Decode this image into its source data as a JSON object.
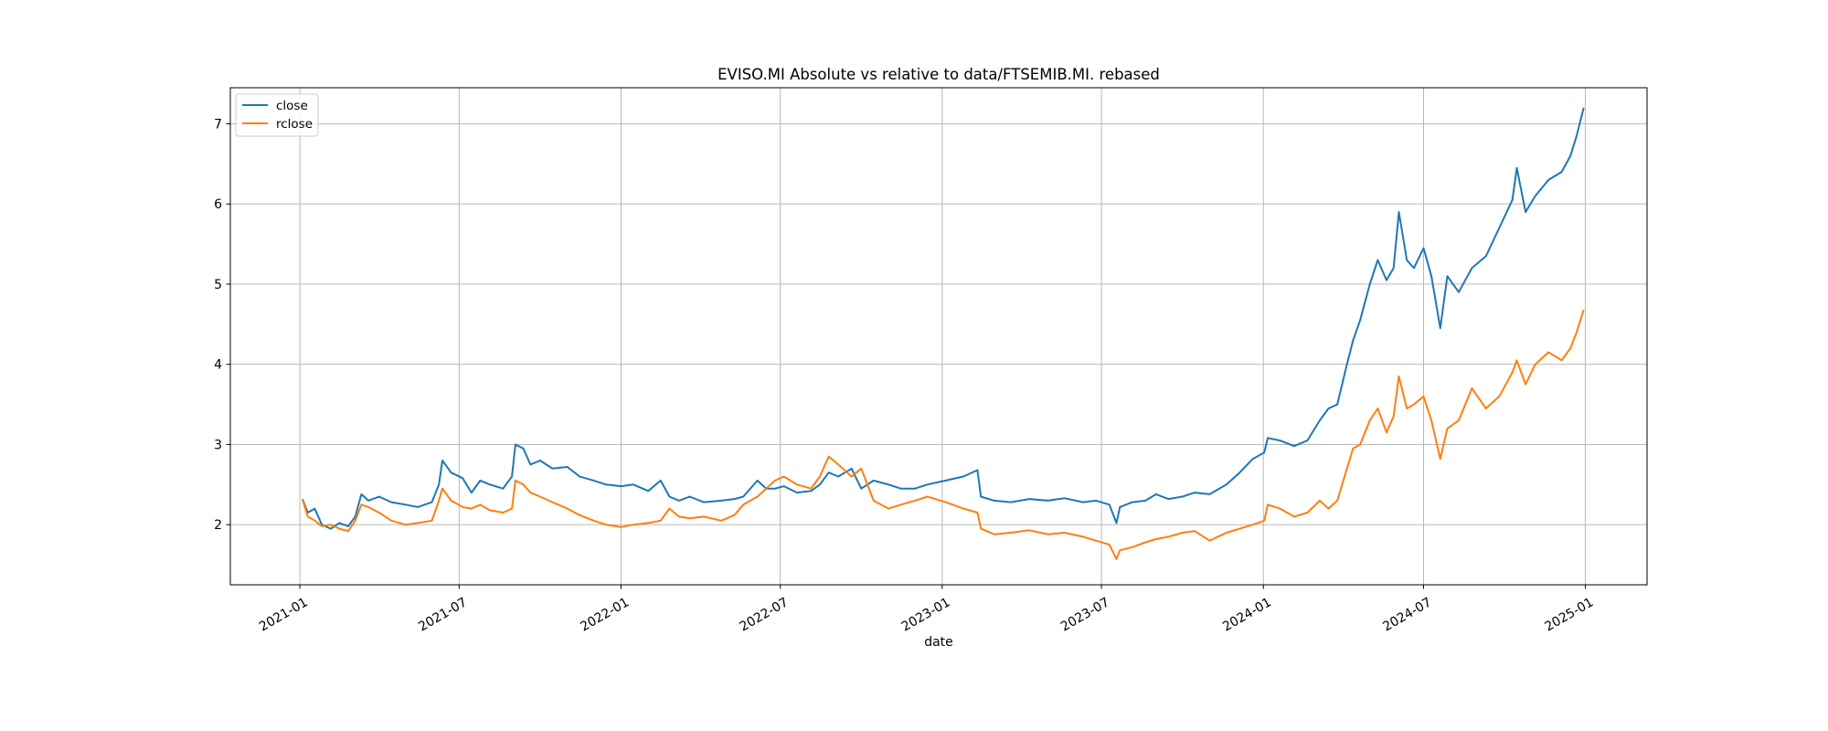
{
  "chart_data": {
    "type": "line",
    "title": "EVISO.MI Absolute vs relative to data/FTSEMIB.MI. rebased",
    "xlabel": "date",
    "ylabel": "",
    "grid": true,
    "legend_position": "upper-left",
    "xlim": [
      "2020-10-14",
      "2025-03-12"
    ],
    "ylim": [
      1.25,
      7.45
    ],
    "x_ticks": [
      "2021-01",
      "2021-07",
      "2022-01",
      "2022-07",
      "2023-01",
      "2023-07",
      "2024-01",
      "2024-07",
      "2025-01"
    ],
    "y_ticks": [
      2,
      3,
      4,
      5,
      6,
      7
    ],
    "series": [
      {
        "name": "close",
        "color": "#1f77b4",
        "points": [
          [
            "2021-01-04",
            2.32
          ],
          [
            "2021-01-10",
            2.15
          ],
          [
            "2021-01-18",
            2.2
          ],
          [
            "2021-01-26",
            2.0
          ],
          [
            "2021-02-05",
            1.95
          ],
          [
            "2021-02-15",
            2.02
          ],
          [
            "2021-02-25",
            1.98
          ],
          [
            "2021-03-05",
            2.1
          ],
          [
            "2021-03-12",
            2.38
          ],
          [
            "2021-03-20",
            2.3
          ],
          [
            "2021-04-01",
            2.35
          ],
          [
            "2021-04-15",
            2.28
          ],
          [
            "2021-05-01",
            2.25
          ],
          [
            "2021-05-15",
            2.22
          ],
          [
            "2021-05-31",
            2.28
          ],
          [
            "2021-06-08",
            2.5
          ],
          [
            "2021-06-12",
            2.8
          ],
          [
            "2021-06-22",
            2.65
          ],
          [
            "2021-07-05",
            2.58
          ],
          [
            "2021-07-15",
            2.4
          ],
          [
            "2021-07-25",
            2.55
          ],
          [
            "2021-08-05",
            2.5
          ],
          [
            "2021-08-20",
            2.45
          ],
          [
            "2021-08-30",
            2.6
          ],
          [
            "2021-09-03",
            3.0
          ],
          [
            "2021-09-12",
            2.95
          ],
          [
            "2021-09-20",
            2.75
          ],
          [
            "2021-10-01",
            2.8
          ],
          [
            "2021-10-15",
            2.7
          ],
          [
            "2021-11-01",
            2.72
          ],
          [
            "2021-11-15",
            2.6
          ],
          [
            "2021-12-01",
            2.55
          ],
          [
            "2021-12-15",
            2.5
          ],
          [
            "2022-01-01",
            2.48
          ],
          [
            "2022-01-15",
            2.5
          ],
          [
            "2022-02-01",
            2.42
          ],
          [
            "2022-02-15",
            2.55
          ],
          [
            "2022-02-25",
            2.35
          ],
          [
            "2022-03-08",
            2.3
          ],
          [
            "2022-03-20",
            2.35
          ],
          [
            "2022-04-05",
            2.28
          ],
          [
            "2022-04-25",
            2.3
          ],
          [
            "2022-05-10",
            2.32
          ],
          [
            "2022-05-20",
            2.35
          ],
          [
            "2022-06-05",
            2.55
          ],
          [
            "2022-06-15",
            2.45
          ],
          [
            "2022-06-25",
            2.45
          ],
          [
            "2022-07-05",
            2.48
          ],
          [
            "2022-07-20",
            2.4
          ],
          [
            "2022-08-05",
            2.42
          ],
          [
            "2022-08-15",
            2.5
          ],
          [
            "2022-08-25",
            2.65
          ],
          [
            "2022-09-05",
            2.6
          ],
          [
            "2022-09-20",
            2.7
          ],
          [
            "2022-10-01",
            2.45
          ],
          [
            "2022-10-15",
            2.55
          ],
          [
            "2022-11-01",
            2.5
          ],
          [
            "2022-11-15",
            2.45
          ],
          [
            "2022-12-01",
            2.45
          ],
          [
            "2022-12-15",
            2.5
          ],
          [
            "2023-01-05",
            2.55
          ],
          [
            "2023-01-25",
            2.6
          ],
          [
            "2023-02-10",
            2.68
          ],
          [
            "2023-02-14",
            2.35
          ],
          [
            "2023-03-01",
            2.3
          ],
          [
            "2023-03-20",
            2.28
          ],
          [
            "2023-04-10",
            2.32
          ],
          [
            "2023-05-01",
            2.3
          ],
          [
            "2023-05-20",
            2.33
          ],
          [
            "2023-06-10",
            2.28
          ],
          [
            "2023-06-25",
            2.3
          ],
          [
            "2023-07-10",
            2.25
          ],
          [
            "2023-07-18",
            2.02
          ],
          [
            "2023-07-22",
            2.22
          ],
          [
            "2023-08-05",
            2.28
          ],
          [
            "2023-08-20",
            2.3
          ],
          [
            "2023-09-01",
            2.38
          ],
          [
            "2023-09-15",
            2.32
          ],
          [
            "2023-10-01",
            2.35
          ],
          [
            "2023-10-15",
            2.4
          ],
          [
            "2023-11-01",
            2.38
          ],
          [
            "2023-11-20",
            2.5
          ],
          [
            "2023-12-05",
            2.65
          ],
          [
            "2023-12-20",
            2.82
          ],
          [
            "2024-01-02",
            2.9
          ],
          [
            "2024-01-06",
            3.08
          ],
          [
            "2024-01-20",
            3.05
          ],
          [
            "2024-02-05",
            2.98
          ],
          [
            "2024-02-20",
            3.05
          ],
          [
            "2024-03-05",
            3.3
          ],
          [
            "2024-03-15",
            3.45
          ],
          [
            "2024-03-25",
            3.5
          ],
          [
            "2024-04-05",
            4.0
          ],
          [
            "2024-04-12",
            4.3
          ],
          [
            "2024-04-20",
            4.55
          ],
          [
            "2024-05-01",
            5.0
          ],
          [
            "2024-05-10",
            5.3
          ],
          [
            "2024-05-20",
            5.05
          ],
          [
            "2024-05-28",
            5.2
          ],
          [
            "2024-06-03",
            5.9
          ],
          [
            "2024-06-12",
            5.3
          ],
          [
            "2024-06-20",
            5.2
          ],
          [
            "2024-07-01",
            5.45
          ],
          [
            "2024-07-10",
            5.1
          ],
          [
            "2024-07-20",
            4.45
          ],
          [
            "2024-07-28",
            5.1
          ],
          [
            "2024-08-10",
            4.9
          ],
          [
            "2024-08-25",
            5.2
          ],
          [
            "2024-09-10",
            5.35
          ],
          [
            "2024-09-25",
            5.7
          ],
          [
            "2024-10-10",
            6.05
          ],
          [
            "2024-10-15",
            6.45
          ],
          [
            "2024-10-25",
            5.9
          ],
          [
            "2024-11-05",
            6.1
          ],
          [
            "2024-11-20",
            6.3
          ],
          [
            "2024-12-05",
            6.4
          ],
          [
            "2024-12-15",
            6.6
          ],
          [
            "2024-12-22",
            6.85
          ],
          [
            "2024-12-30",
            7.2
          ]
        ]
      },
      {
        "name": "rclose",
        "color": "#ff7f0e",
        "points": [
          [
            "2021-01-04",
            2.32
          ],
          [
            "2021-01-10",
            2.1
          ],
          [
            "2021-01-18",
            2.05
          ],
          [
            "2021-01-26",
            1.98
          ],
          [
            "2021-02-05",
            2.0
          ],
          [
            "2021-02-15",
            1.95
          ],
          [
            "2021-02-25",
            1.92
          ],
          [
            "2021-03-05",
            2.05
          ],
          [
            "2021-03-12",
            2.25
          ],
          [
            "2021-03-20",
            2.22
          ],
          [
            "2021-04-01",
            2.15
          ],
          [
            "2021-04-15",
            2.05
          ],
          [
            "2021-05-01",
            2.0
          ],
          [
            "2021-05-15",
            2.02
          ],
          [
            "2021-05-31",
            2.05
          ],
          [
            "2021-06-08",
            2.3
          ],
          [
            "2021-06-12",
            2.45
          ],
          [
            "2021-06-22",
            2.3
          ],
          [
            "2021-07-05",
            2.22
          ],
          [
            "2021-07-15",
            2.2
          ],
          [
            "2021-07-25",
            2.25
          ],
          [
            "2021-08-05",
            2.18
          ],
          [
            "2021-08-20",
            2.15
          ],
          [
            "2021-08-30",
            2.2
          ],
          [
            "2021-09-03",
            2.55
          ],
          [
            "2021-09-12",
            2.5
          ],
          [
            "2021-09-20",
            2.4
          ],
          [
            "2021-10-01",
            2.35
          ],
          [
            "2021-10-15",
            2.28
          ],
          [
            "2021-11-01",
            2.2
          ],
          [
            "2021-11-15",
            2.12
          ],
          [
            "2021-12-01",
            2.05
          ],
          [
            "2021-12-15",
            2.0
          ],
          [
            "2022-01-01",
            1.97
          ],
          [
            "2022-01-15",
            2.0
          ],
          [
            "2022-02-01",
            2.02
          ],
          [
            "2022-02-15",
            2.05
          ],
          [
            "2022-02-25",
            2.2
          ],
          [
            "2022-03-08",
            2.1
          ],
          [
            "2022-03-20",
            2.08
          ],
          [
            "2022-04-05",
            2.1
          ],
          [
            "2022-04-25",
            2.05
          ],
          [
            "2022-05-10",
            2.12
          ],
          [
            "2022-05-20",
            2.25
          ],
          [
            "2022-06-05",
            2.35
          ],
          [
            "2022-06-15",
            2.45
          ],
          [
            "2022-06-25",
            2.55
          ],
          [
            "2022-07-05",
            2.6
          ],
          [
            "2022-07-20",
            2.5
          ],
          [
            "2022-08-05",
            2.45
          ],
          [
            "2022-08-15",
            2.6
          ],
          [
            "2022-08-25",
            2.85
          ],
          [
            "2022-09-05",
            2.75
          ],
          [
            "2022-09-20",
            2.6
          ],
          [
            "2022-10-01",
            2.7
          ],
          [
            "2022-10-15",
            2.3
          ],
          [
            "2022-11-01",
            2.2
          ],
          [
            "2022-11-15",
            2.25
          ],
          [
            "2022-12-01",
            2.3
          ],
          [
            "2022-12-15",
            2.35
          ],
          [
            "2023-01-05",
            2.28
          ],
          [
            "2023-01-25",
            2.2
          ],
          [
            "2023-02-10",
            2.15
          ],
          [
            "2023-02-14",
            1.95
          ],
          [
            "2023-03-01",
            1.88
          ],
          [
            "2023-03-20",
            1.9
          ],
          [
            "2023-04-10",
            1.93
          ],
          [
            "2023-05-01",
            1.88
          ],
          [
            "2023-05-20",
            1.9
          ],
          [
            "2023-06-10",
            1.85
          ],
          [
            "2023-06-25",
            1.8
          ],
          [
            "2023-07-10",
            1.75
          ],
          [
            "2023-07-18",
            1.57
          ],
          [
            "2023-07-22",
            1.68
          ],
          [
            "2023-08-05",
            1.72
          ],
          [
            "2023-08-20",
            1.78
          ],
          [
            "2023-09-01",
            1.82
          ],
          [
            "2023-09-15",
            1.85
          ],
          [
            "2023-10-01",
            1.9
          ],
          [
            "2023-10-15",
            1.92
          ],
          [
            "2023-11-01",
            1.8
          ],
          [
            "2023-11-20",
            1.9
          ],
          [
            "2023-12-05",
            1.95
          ],
          [
            "2023-12-20",
            2.0
          ],
          [
            "2024-01-02",
            2.05
          ],
          [
            "2024-01-06",
            2.25
          ],
          [
            "2024-01-20",
            2.2
          ],
          [
            "2024-02-05",
            2.1
          ],
          [
            "2024-02-20",
            2.15
          ],
          [
            "2024-03-05",
            2.3
          ],
          [
            "2024-03-15",
            2.2
          ],
          [
            "2024-03-25",
            2.3
          ],
          [
            "2024-04-05",
            2.7
          ],
          [
            "2024-04-12",
            2.95
          ],
          [
            "2024-04-20",
            3.0
          ],
          [
            "2024-05-01",
            3.3
          ],
          [
            "2024-05-10",
            3.45
          ],
          [
            "2024-05-20",
            3.15
          ],
          [
            "2024-05-28",
            3.35
          ],
          [
            "2024-06-03",
            3.85
          ],
          [
            "2024-06-12",
            3.45
          ],
          [
            "2024-06-20",
            3.5
          ],
          [
            "2024-07-01",
            3.6
          ],
          [
            "2024-07-10",
            3.3
          ],
          [
            "2024-07-20",
            2.82
          ],
          [
            "2024-07-28",
            3.2
          ],
          [
            "2024-08-10",
            3.3
          ],
          [
            "2024-08-25",
            3.7
          ],
          [
            "2024-09-10",
            3.45
          ],
          [
            "2024-09-25",
            3.6
          ],
          [
            "2024-10-10",
            3.9
          ],
          [
            "2024-10-15",
            4.05
          ],
          [
            "2024-10-25",
            3.75
          ],
          [
            "2024-11-05",
            4.0
          ],
          [
            "2024-11-20",
            4.15
          ],
          [
            "2024-12-05",
            4.05
          ],
          [
            "2024-12-15",
            4.2
          ],
          [
            "2024-12-22",
            4.4
          ],
          [
            "2024-12-30",
            4.68
          ]
        ]
      }
    ]
  }
}
